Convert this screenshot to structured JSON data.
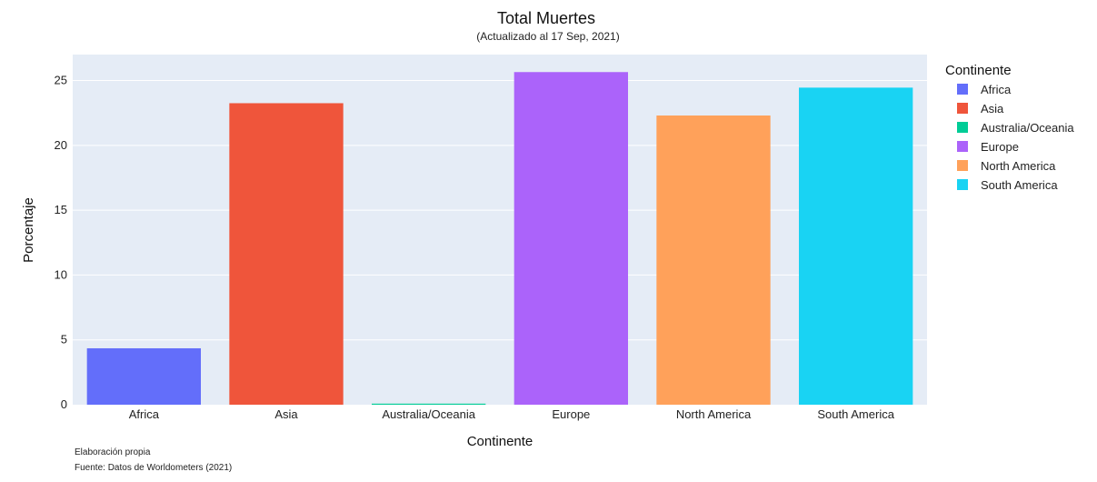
{
  "chart_data": {
    "type": "bar",
    "title": "Total Muertes",
    "subtitle": "(Actualizado al 17 Sep, 2021)",
    "xlabel": "Continente",
    "ylabel": "Porcentaje",
    "categories": [
      "Africa",
      "Asia",
      "Australia/Oceania",
      "Europe",
      "North America",
      "South America"
    ],
    "values": [
      4.35,
      23.25,
      0.08,
      25.65,
      22.3,
      24.45
    ],
    "colors": [
      "#636efa",
      "#ef553b",
      "#00cc96",
      "#ab63fa",
      "#ffa15a",
      "#19d3f3"
    ],
    "ylim": [
      0,
      27
    ],
    "yticks": [
      0,
      5,
      10,
      15,
      20,
      25
    ],
    "grid": true,
    "plot_background": "#e5ecf6",
    "legend": {
      "title": "Continente",
      "placement": "top-right",
      "entries": [
        "Africa",
        "Asia",
        "Australia/Oceania",
        "Europe",
        "North America",
        "South America"
      ]
    },
    "annotations": [
      "Elaboración propia",
      "Fuente: Datos de Worldometers (2021)"
    ]
  }
}
